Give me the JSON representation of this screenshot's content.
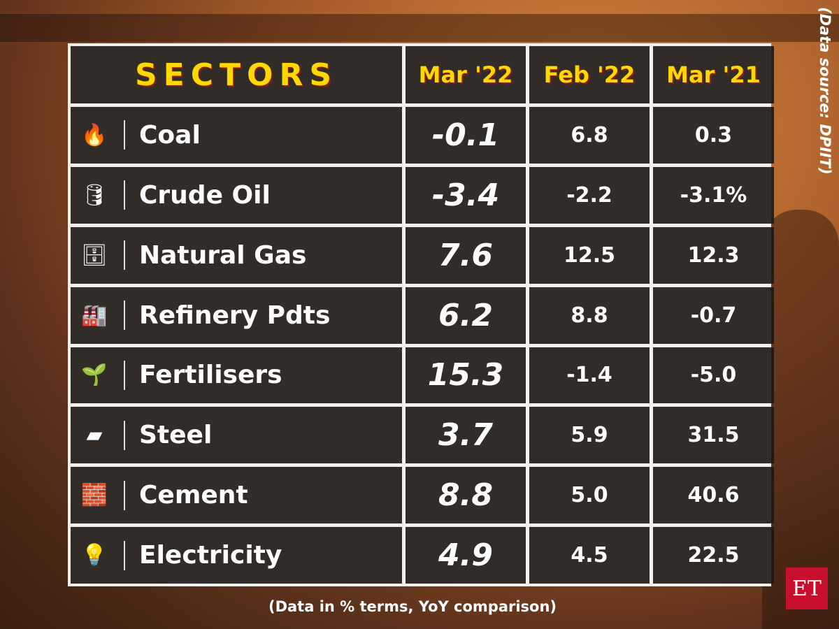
{
  "source_note": "(Data source: DPIIT)",
  "footnote": "(Data in % terms, YoY comparison)",
  "logo": "ET",
  "chart_data": {
    "type": "table",
    "columns": [
      "SECTORS",
      "Mar '22",
      "Feb '22",
      "Mar '21"
    ],
    "rows": [
      {
        "sector": "Coal",
        "icon": "coal-fire-icon",
        "glyph": "🔥",
        "mar22": "-0.1",
        "feb22": "6.8",
        "mar21": "0.3"
      },
      {
        "sector": "Crude Oil",
        "icon": "oil-barrel-icon",
        "glyph": "🛢",
        "mar22": "-3.4",
        "feb22": "-2.2",
        "mar21": "-3.1%"
      },
      {
        "sector": "Natural Gas",
        "icon": "gas-leaf-icon",
        "glyph": "🗄",
        "mar22": "7.6",
        "feb22": "12.5",
        "mar21": "12.3"
      },
      {
        "sector": "Refinery Pdts",
        "icon": "refinery-icon",
        "glyph": "🏭",
        "mar22": "6.2",
        "feb22": "8.8",
        "mar21": "-0.7"
      },
      {
        "sector": "Fertilisers",
        "icon": "fertiliser-bag-icon",
        "glyph": "🌱",
        "mar22": "15.3",
        "feb22": "-1.4",
        "mar21": "-5.0"
      },
      {
        "sector": "Steel",
        "icon": "steel-bars-icon",
        "glyph": "▰",
        "mar22": "3.7",
        "feb22": "5.9",
        "mar21": "31.5"
      },
      {
        "sector": "Cement",
        "icon": "cement-icon",
        "glyph": "🧱",
        "mar22": "8.8",
        "feb22": "5.0",
        "mar21": "40.6"
      },
      {
        "sector": "Electricity",
        "icon": "lightbulb-icon",
        "glyph": "💡",
        "mar22": "4.9",
        "feb22": "4.5",
        "mar21": "22.5"
      }
    ]
  },
  "colors": {
    "header_text": "#ffd800",
    "header_shadow": "#8b1d0e",
    "brand": "#c8102e"
  }
}
